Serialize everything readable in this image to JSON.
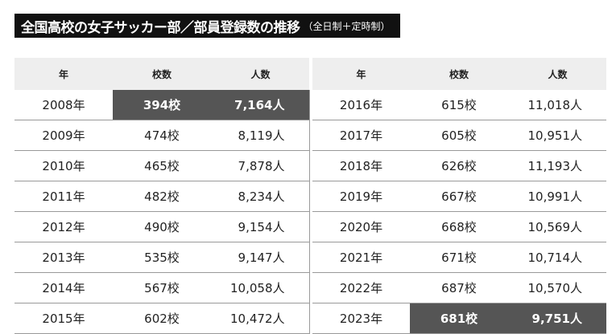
{
  "title": "全国高校の女子サッカー部／部員登録数の推移",
  "subtitle": "（全日制＋定時制）",
  "table": {
    "header": [
      "年",
      "校数",
      "人数",
      "年",
      "校数",
      "人数"
    ],
    "rows": [
      [
        "2008年",
        "394校",
        "7,164人",
        "2016年",
        "615校",
        "11,018人"
      ],
      [
        "2009年",
        "474校",
        "8,119人",
        "2017年",
        "605校",
        "10,951人"
      ],
      [
        "2010年",
        "465校",
        "7,878人",
        "2018年",
        "626校",
        "11,193人"
      ],
      [
        "2011年",
        "482校",
        "8,234人",
        "2019年",
        "667校",
        "10,991人"
      ],
      [
        "2012年",
        "490校",
        "9,154人",
        "2020年",
        "668校",
        "10,569人"
      ],
      [
        "2013年",
        "535校",
        "9,147人",
        "2021年",
        "671校",
        "10,714人"
      ],
      [
        "2014年",
        "567校",
        "10,058人",
        "2022年",
        "687校",
        "10,570人"
      ],
      [
        "2015年",
        "602校",
        "10,472人",
        "2023年",
        "681校",
        "9,751人"
      ]
    ]
  }
}
